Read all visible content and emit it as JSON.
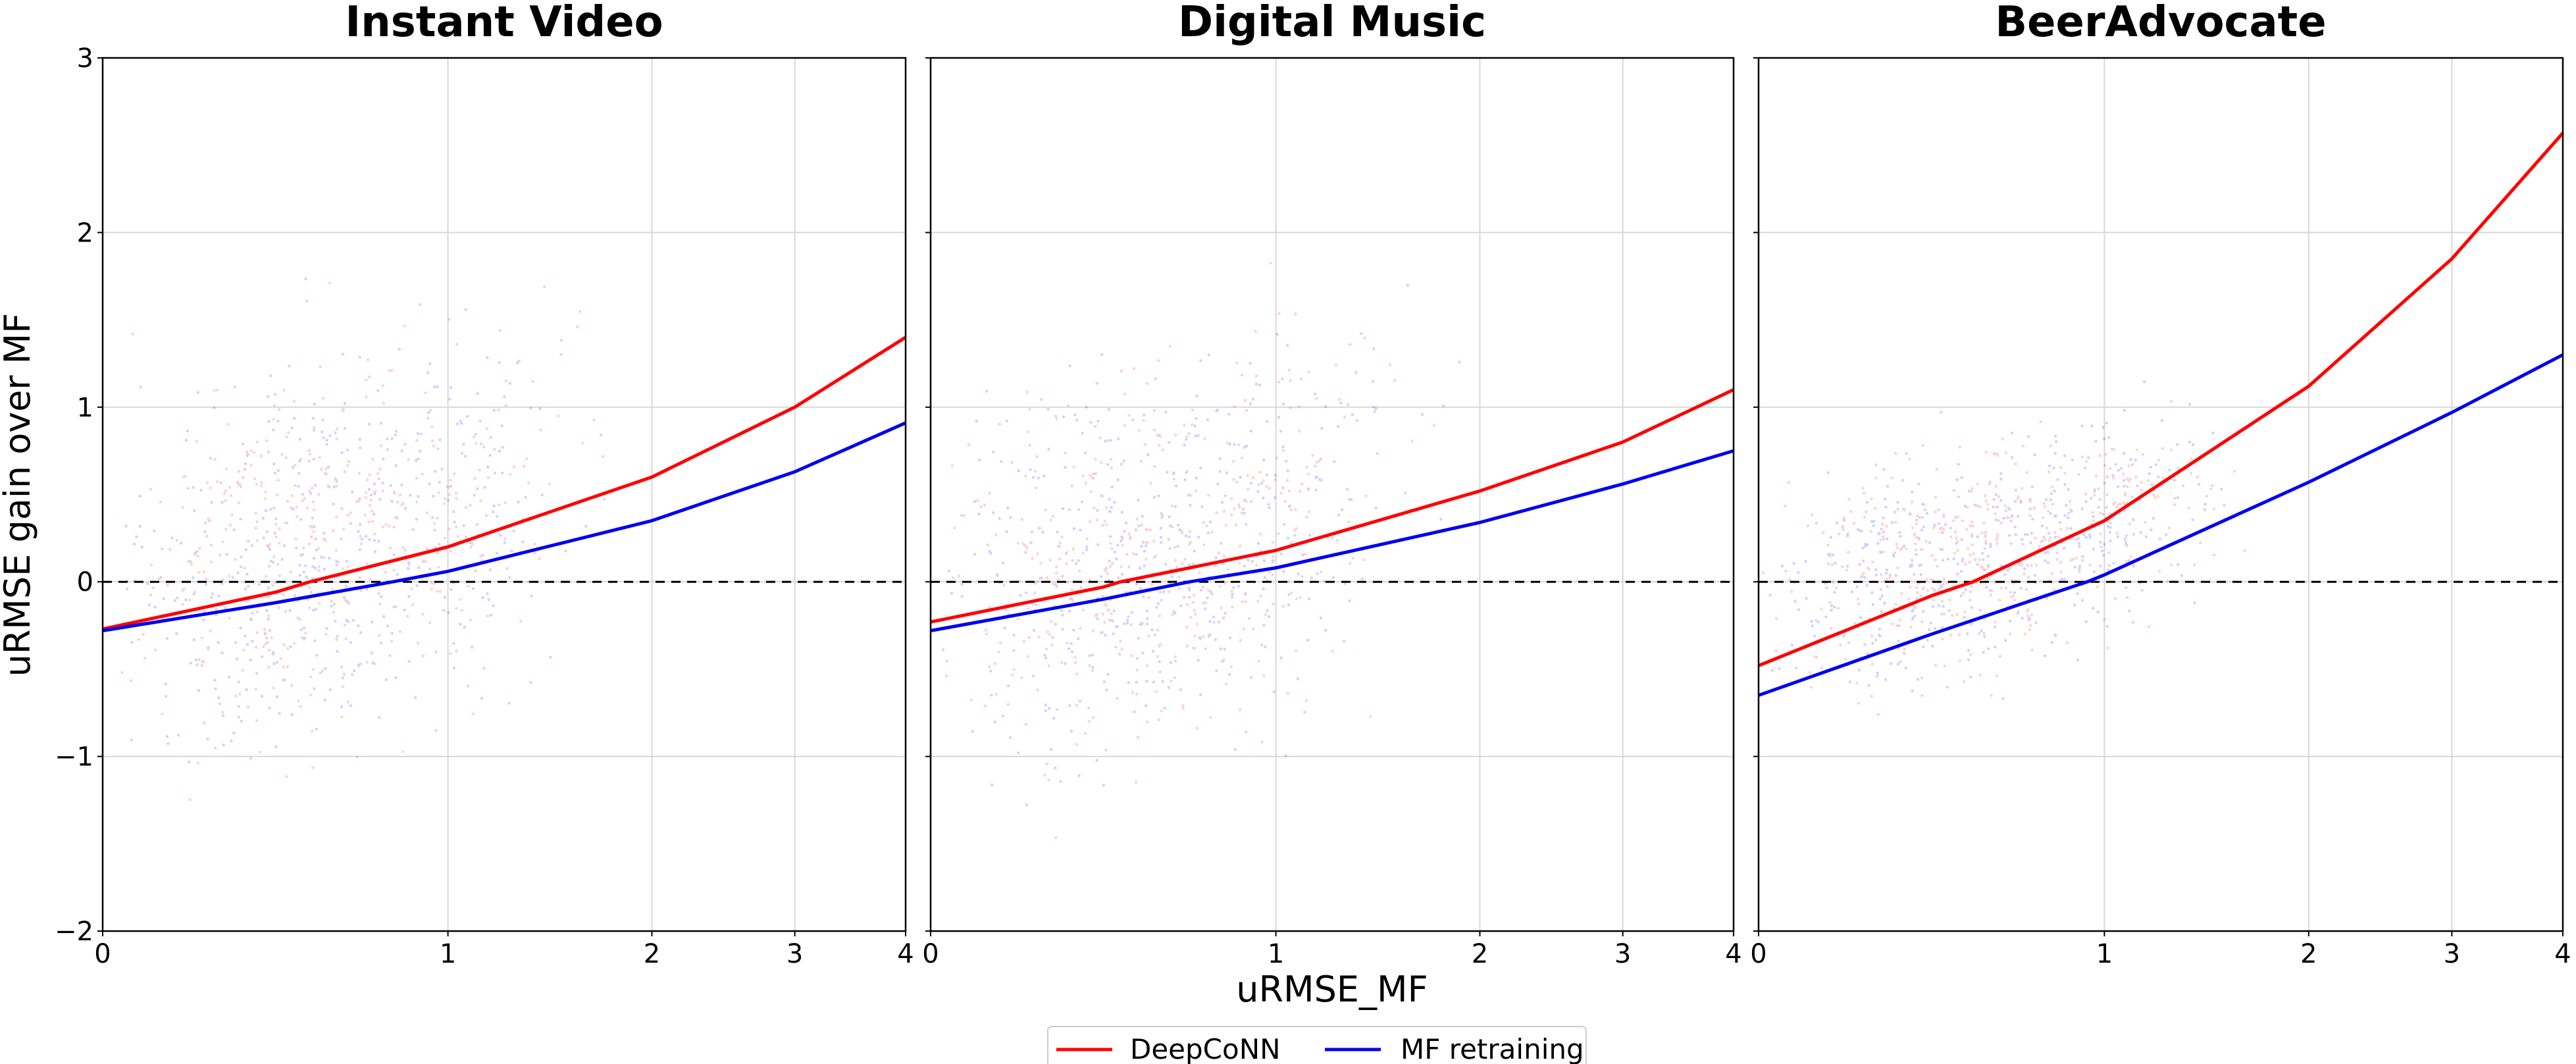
{
  "chart_data": [
    {
      "type": "line",
      "title": "Instant Video",
      "x_ticks": [
        "0",
        "1",
        "2",
        "3",
        "4"
      ],
      "y_ticks": [
        "−2",
        "−1",
        "0",
        "1",
        "2",
        "3"
      ],
      "xlim": [
        0,
        4
      ],
      "ylim": [
        -2,
        3
      ],
      "grid": true,
      "series": [
        {
          "name": "DeepCoNN",
          "color": "#ff0000",
          "x": [
            0,
            0.5,
            0.6,
            1,
            2,
            3,
            4
          ],
          "y": [
            -0.27,
            -0.06,
            0,
            0.2,
            0.6,
            1.0,
            1.4
          ]
        },
        {
          "name": "MF retraining",
          "color": "#0000ee",
          "x": [
            0,
            0.5,
            0.84,
            1,
            2,
            3,
            4
          ],
          "y": [
            -0.28,
            -0.12,
            0,
            0.06,
            0.35,
            0.63,
            0.91
          ]
        }
      ],
      "zero_line": 0
    },
    {
      "type": "line",
      "title": "Digital Music",
      "x_ticks": [
        "0",
        "1",
        "2",
        "3",
        "4"
      ],
      "y_ticks": [
        "−2",
        "−1",
        "0",
        "1",
        "2",
        "3"
      ],
      "xlim": [
        0,
        4
      ],
      "ylim": [
        -2,
        3
      ],
      "grid": true,
      "series": [
        {
          "name": "DeepCoNN",
          "color": "#ff0000",
          "x": [
            0,
            0.5,
            0.55,
            1,
            2,
            3,
            4
          ],
          "y": [
            -0.23,
            -0.03,
            0,
            0.18,
            0.52,
            0.8,
            1.1
          ]
        },
        {
          "name": "MF retraining",
          "color": "#0000ee",
          "x": [
            0,
            0.5,
            0.75,
            1,
            2,
            3,
            4
          ],
          "y": [
            -0.28,
            -0.1,
            0,
            0.08,
            0.34,
            0.56,
            0.75
          ]
        }
      ],
      "zero_line": 0
    },
    {
      "type": "line",
      "title": "BeerAdvocate",
      "x_ticks": [
        "0",
        "1",
        "2",
        "3",
        "4"
      ],
      "y_ticks": [
        "−2",
        "−1",
        "0",
        "1",
        "2",
        "3"
      ],
      "xlim": [
        0,
        4
      ],
      "ylim": [
        -2,
        3
      ],
      "grid": true,
      "series": [
        {
          "name": "DeepCoNN",
          "color": "#ff0000",
          "x": [
            0,
            0.5,
            0.62,
            1,
            2,
            3,
            4
          ],
          "y": [
            -0.48,
            -0.08,
            0,
            0.35,
            1.12,
            1.85,
            2.57
          ]
        },
        {
          "name": "MF retraining",
          "color": "#0000ee",
          "x": [
            0,
            0.5,
            0.95,
            1,
            2,
            3,
            4
          ],
          "y": [
            -0.65,
            -0.3,
            0,
            0.04,
            0.57,
            0.97,
            1.3
          ]
        }
      ],
      "zero_line": 0
    }
  ],
  "axes": {
    "xlabel": "uRMSE_MF",
    "ylabel": "uRMSE gain over MF"
  },
  "legend": {
    "placement": "bottom-center",
    "items": [
      {
        "label": "DeepCoNN",
        "color": "#ff0000"
      },
      {
        "label": "MF retraining",
        "color": "#0000ee"
      }
    ]
  }
}
